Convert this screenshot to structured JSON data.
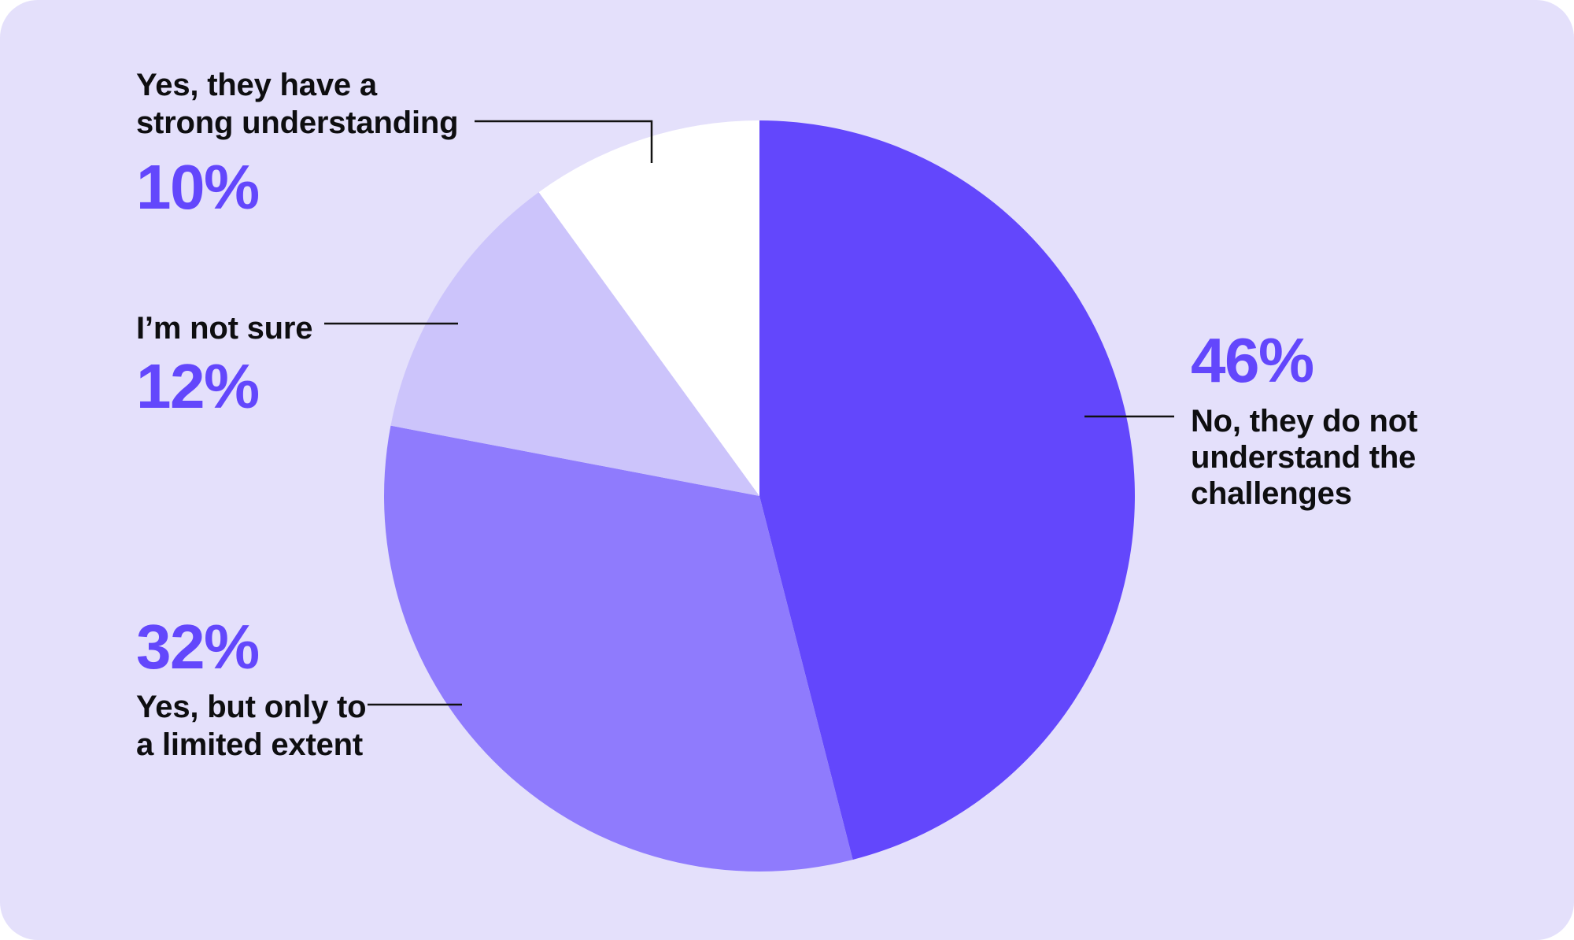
{
  "chart_data": {
    "type": "pie",
    "title": "",
    "start_angle_deg": 0,
    "direction": "clockwise",
    "legend_position": "callout-labels",
    "segments": [
      {
        "label": "No, they do not understand the challenges",
        "value": 46,
        "percent_label": "46%",
        "color": "#6347FC"
      },
      {
        "label": "Yes, but only to a limited extent",
        "value": 32,
        "percent_label": "32%",
        "color": "#8F7BFD"
      },
      {
        "label": "I’m not sure",
        "value": 12,
        "percent_label": "12%",
        "color": "#CCC4FB"
      },
      {
        "label": "Yes, they have a strong understanding",
        "value": 10,
        "percent_label": "10%",
        "color": "#FFFFFF"
      }
    ]
  },
  "callouts": {
    "strong": {
      "line1": "Yes, they have a",
      "line2": "strong understanding",
      "pct": "10%"
    },
    "notsure": {
      "line1": "I’m not sure",
      "pct": "12%"
    },
    "limited": {
      "pct": "32%",
      "line1": "Yes, but only to",
      "line2": "a limited extent"
    },
    "no": {
      "pct": "46%",
      "line1": "No, they do not",
      "line2": "understand the",
      "line3": "challenges"
    }
  },
  "colors": {
    "card_background": "#E4E0FB",
    "page_background": "#FFFFFF",
    "accent_percent": "#6347FC",
    "label_text": "#0E0E10",
    "leader_line": "#121212",
    "slice_dark": "#6347FC",
    "slice_medium": "#8F7BFD",
    "slice_light": "#CCC4FB",
    "slice_white": "#FFFFFF"
  }
}
